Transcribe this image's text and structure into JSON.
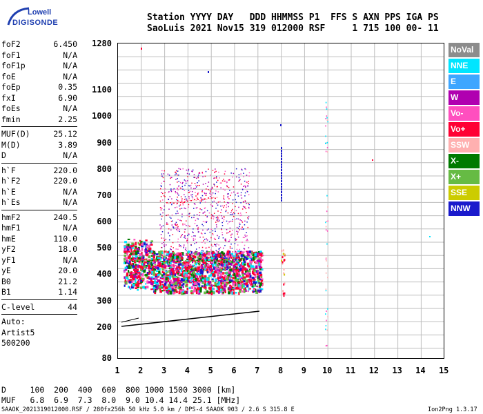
{
  "logo": {
    "line1": "Lowell",
    "line2": "DIGISONDE"
  },
  "header": {
    "line1": "Station YYYY DAY   DDD HHMMSS P1  FFS S AXN PPS IGA PS",
    "line2": "SaoLuis 2021 Nov15 319 012000 RSF     1 715 100 00- 11"
  },
  "params_groups": [
    [
      [
        "foF2",
        "6.450"
      ],
      [
        "foF1",
        "N/A"
      ],
      [
        "foF1p",
        "N/A"
      ],
      [
        "foE",
        "N/A"
      ],
      [
        "foEp",
        "0.35"
      ],
      [
        "fxI",
        "6.90"
      ],
      [
        "foEs",
        "N/A"
      ],
      [
        "fmin",
        "2.25"
      ]
    ],
    [
      [
        "MUF(D)",
        "25.12"
      ],
      [
        "M(D)",
        "3.89"
      ],
      [
        "D",
        "N/A"
      ]
    ],
    [
      [
        "h`F",
        "220.0"
      ],
      [
        "h`F2",
        "220.0"
      ],
      [
        "h`E",
        "N/A"
      ],
      [
        "h`Es",
        "N/A"
      ]
    ],
    [
      [
        "hmF2",
        "240.5"
      ],
      [
        "hmF1",
        "N/A"
      ],
      [
        "hmE",
        "110.0"
      ],
      [
        "yF2",
        "18.0"
      ],
      [
        "yF1",
        "N/A"
      ],
      [
        "yE",
        "20.0"
      ],
      [
        "B0",
        "21.2"
      ],
      [
        "B1",
        "1.14"
      ]
    ],
    [
      [
        "C-level",
        "44"
      ]
    ]
  ],
  "auto": [
    "Auto:",
    "Artist5",
    "500200"
  ],
  "plot": {
    "y_ticks": [
      "1280",
      "1100",
      "1000",
      "900",
      "800",
      "700",
      "600",
      "500",
      "400",
      "300",
      "200",
      "80"
    ],
    "x_ticks": [
      "1",
      "2",
      "3",
      "4",
      "5",
      "6",
      "7",
      "8",
      "9",
      "10",
      "11",
      "12",
      "13",
      "14",
      "15"
    ]
  },
  "legend": [
    {
      "label": "NoVal",
      "color": "#8c8c8c"
    },
    {
      "label": "NNE",
      "color": "#00e5ff"
    },
    {
      "label": "E",
      "color": "#3ea6ff"
    },
    {
      "label": "W",
      "color": "#b000b0"
    },
    {
      "label": "Vo-",
      "color": "#ff4fbf"
    },
    {
      "label": "Vo+",
      "color": "#ff0033"
    },
    {
      "label": "SSW",
      "color": "#ffb0b0"
    },
    {
      "label": "X-",
      "color": "#007a00"
    },
    {
      "label": "X+",
      "color": "#66bb44"
    },
    {
      "label": "SSE",
      "color": "#cccc00"
    },
    {
      "label": "NNW",
      "color": "#1a1acc"
    }
  ],
  "bottom": {
    "row1": "D     100  200  400  600  800 1000 1500 3000 [km]",
    "row2": "MUF   6.8  6.9  7.3  8.0  9.0 10.4 14.4 25.1 [MHz]"
  },
  "footer": {
    "left": "SAAOK_2021319012000.RSF / 280fx256h 50 kHz 5.0 km / DPS-4 SAAOK 903 / 2.6 S 315.8 E",
    "right": "Ion2Png 1.3.17"
  }
}
